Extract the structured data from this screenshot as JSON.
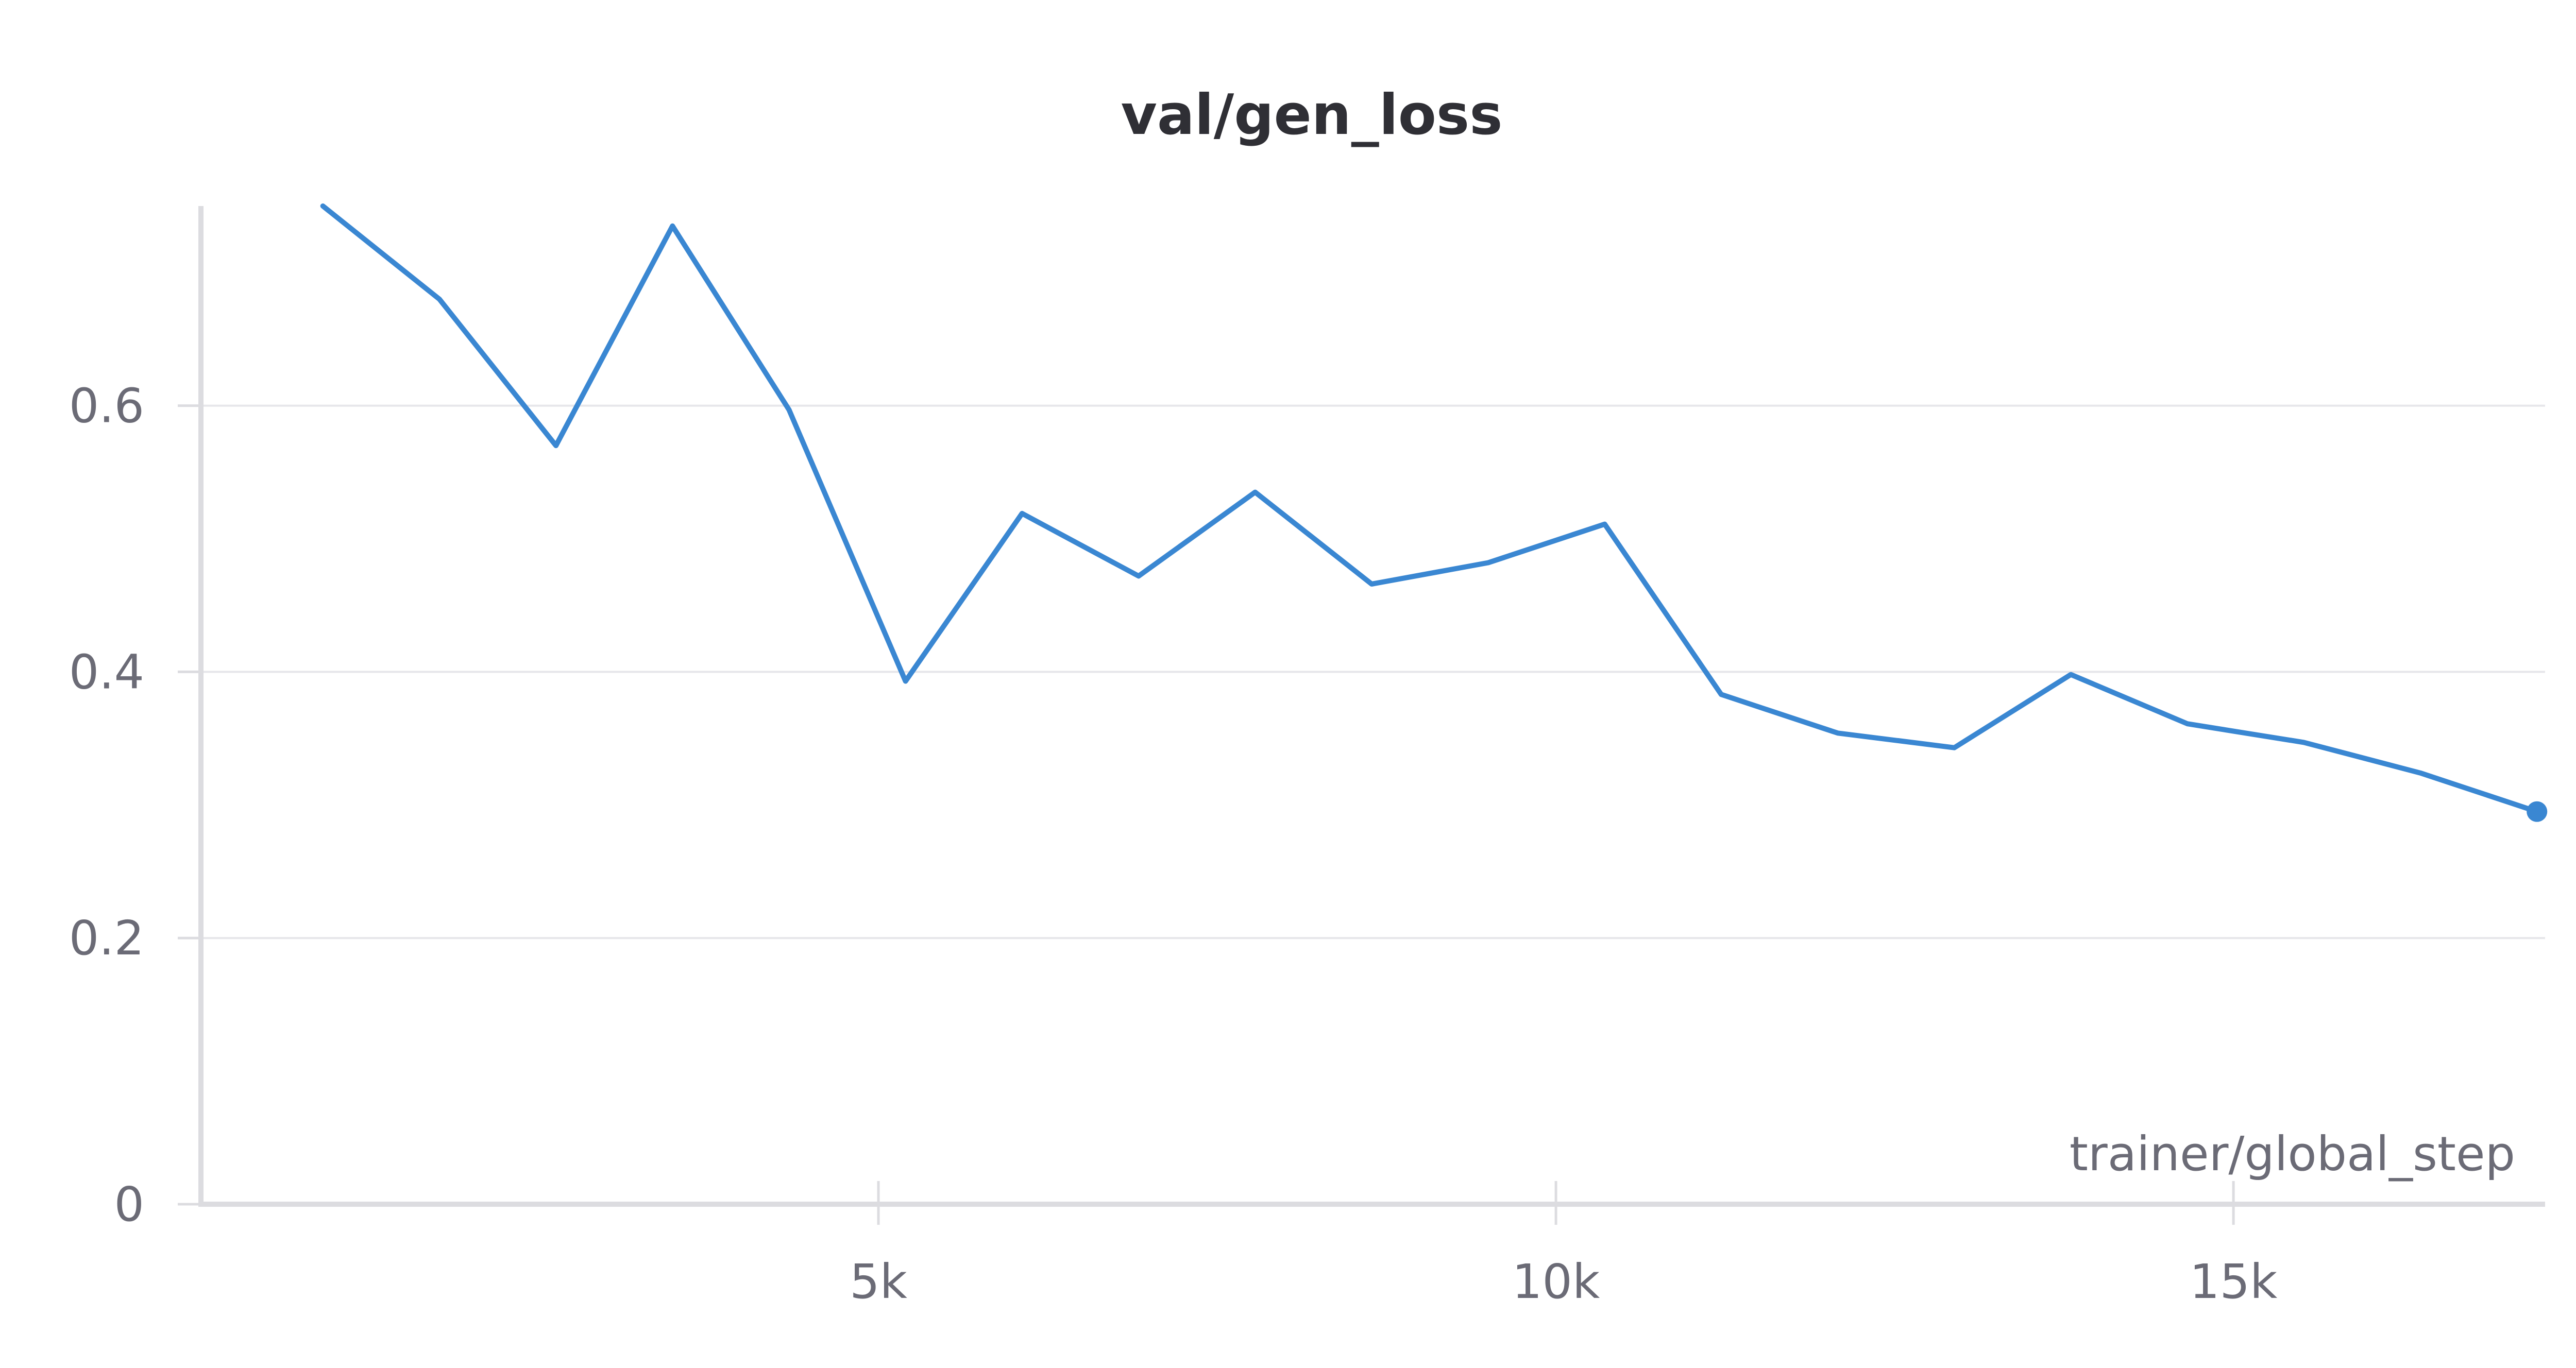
{
  "chart_data": {
    "type": "line",
    "title": "val/gen_loss",
    "xlabel": "trainer/global_step",
    "ylabel": "",
    "xlim": [
      0,
      17300
    ],
    "ylim": [
      0,
      0.75
    ],
    "xticks": [
      {
        "value": 5000,
        "label": "5k"
      },
      {
        "value": 10000,
        "label": "10k"
      },
      {
        "value": 15000,
        "label": "15k"
      }
    ],
    "yticks": [
      {
        "value": 0,
        "label": "0"
      },
      {
        "value": 0.2,
        "label": "0.2"
      },
      {
        "value": 0.4,
        "label": "0.4"
      },
      {
        "value": 0.6,
        "label": "0.6"
      }
    ],
    "grid": true,
    "legend": "none",
    "color": "#3a87d2",
    "series": [
      {
        "x": [
          900,
          1760,
          2620,
          3480,
          4340,
          5200,
          6060,
          6920,
          7780,
          8640,
          9500,
          10360,
          11220,
          12080,
          12940,
          13800,
          14660,
          15520,
          16380,
          17240
        ],
        "y": [
          0.75,
          0.68,
          0.57,
          0.735,
          0.597,
          0.393,
          0.519,
          0.472,
          0.535,
          0.466,
          0.482,
          0.511,
          0.383,
          0.354,
          0.343,
          0.398,
          0.361,
          0.347,
          0.324,
          0.295
        ]
      }
    ]
  }
}
